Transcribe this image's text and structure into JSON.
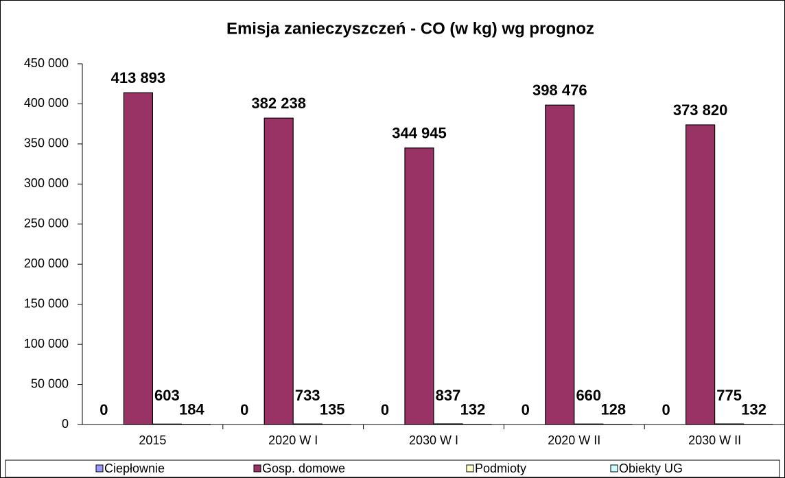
{
  "chart_data": {
    "type": "bar",
    "title": "Emisja zanieczyszczeń - CO  (w kg) wg prognoz",
    "categories": [
      "2015",
      "2020 W I",
      "2030 W I",
      "2020 W II",
      "2030 W II"
    ],
    "series": [
      {
        "name": "Ciepłownie",
        "color": "#9999ff",
        "values": [
          0,
          0,
          0,
          0,
          0
        ]
      },
      {
        "name": "Gosp. domowe",
        "color": "#993366",
        "values": [
          413893,
          382238,
          344945,
          398476,
          373820
        ],
        "value_labels": [
          "413 893",
          "382 238",
          "344 945",
          "398 476",
          "373 820"
        ]
      },
      {
        "name": "Podmioty",
        "color": "#ffffcc",
        "values": [
          603,
          733,
          837,
          660,
          775
        ]
      },
      {
        "name": "Obiekty UG",
        "color": "#ccffff",
        "values": [
          184,
          135,
          132,
          128,
          132
        ]
      }
    ],
    "ylim": [
      0,
      450000
    ],
    "yticks": [
      0,
      {
        "value": 50000,
        "label": "50 000"
      },
      {
        "value": 100000,
        "label": "100 000"
      },
      {
        "value": 150000,
        "label": "150 000"
      },
      {
        "value": 200000,
        "label": "200 000"
      },
      {
        "value": 250000,
        "label": "250 000"
      },
      {
        "value": 300000,
        "label": "300 000"
      },
      {
        "value": 350000,
        "label": "350 000"
      },
      {
        "value": 400000,
        "label": "400 000"
      },
      {
        "value": 450000,
        "label": "450 000"
      }
    ],
    "grid": false,
    "legend": "bottom"
  }
}
